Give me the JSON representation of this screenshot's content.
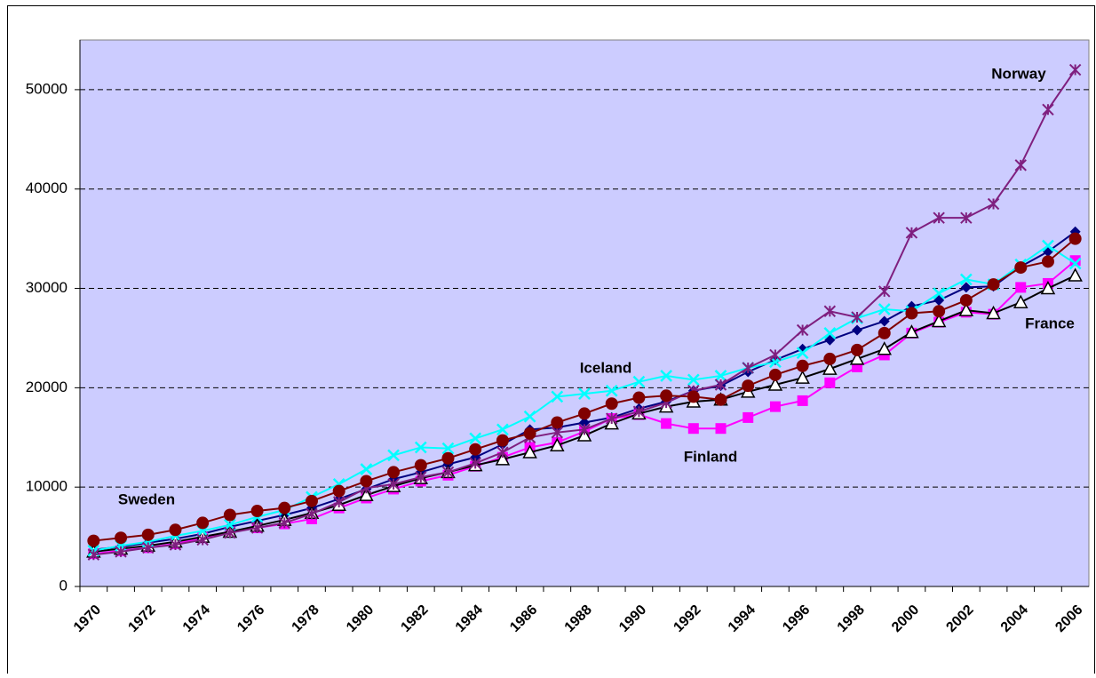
{
  "chart_data": {
    "type": "line",
    "categories": [
      "1970",
      null,
      "1972",
      null,
      "1974",
      null,
      "1976",
      null,
      "1978",
      null,
      "1980",
      null,
      "1982",
      null,
      "1984",
      null,
      "1986",
      null,
      "1988",
      null,
      "1990",
      null,
      "1992",
      null,
      "1994",
      null,
      "1996",
      null,
      "1998",
      null,
      "2000",
      null,
      "2002",
      null,
      "2004",
      null,
      "2006"
    ],
    "ylim": [
      0,
      55000
    ],
    "yticks": [
      0,
      10000,
      20000,
      30000,
      40000,
      50000
    ],
    "grid": true,
    "plot_background": "#ccccff",
    "series": [
      {
        "color": "#000080",
        "marker": "diamond",
        "values": [
          3700,
          4000,
          4400,
          4800,
          5300,
          6000,
          6600,
          7200,
          7900,
          8800,
          9800,
          10800,
          11500,
          12300,
          13000,
          14300,
          15800,
          16000,
          16500,
          17000,
          17900,
          18600,
          19700,
          20200,
          21600,
          22800,
          23900,
          24800,
          25800,
          26700,
          28200,
          28800,
          30100,
          30200,
          32200,
          33700,
          35700
        ]
      },
      {
        "name": "Finland",
        "color": "#ff00ff",
        "marker": "square",
        "values": [
          3300,
          3600,
          3900,
          4300,
          4900,
          5500,
          5900,
          6300,
          6800,
          7900,
          8900,
          9800,
          10600,
          11200,
          12100,
          13000,
          14000,
          14500,
          15600,
          16900,
          17300,
          16400,
          15900,
          15900,
          17000,
          18100,
          18700,
          20500,
          22100,
          23300,
          25500,
          26600,
          27600,
          27400,
          30100,
          30500,
          32800
        ]
      },
      {
        "name": "France",
        "color": "#000000",
        "marker": "triangle",
        "values": [
          3500,
          3800,
          4100,
          4500,
          5000,
          5500,
          6100,
          6700,
          7400,
          8200,
          9200,
          10100,
          10900,
          11500,
          12200,
          12800,
          13500,
          14200,
          15200,
          16400,
          17400,
          18100,
          18600,
          18800,
          19600,
          20300,
          21000,
          21900,
          22900,
          23900,
          25600,
          26700,
          27800,
          27500,
          28600,
          30000,
          31300
        ]
      },
      {
        "name": "Iceland",
        "color": "#00ffff",
        "marker": "x",
        "values": [
          3600,
          4100,
          4500,
          5100,
          5600,
          6200,
          7000,
          7700,
          9000,
          10300,
          11800,
          13200,
          14000,
          13900,
          14900,
          15800,
          17100,
          19100,
          19400,
          19700,
          20600,
          21200,
          20800,
          21200,
          22000,
          22600,
          23500,
          25500,
          27000,
          27900,
          27700,
          29500,
          30900,
          30400,
          32400,
          34300,
          32500
        ]
      },
      {
        "name": "Norway",
        "color": "#7f1f7f",
        "marker": "star",
        "values": [
          3200,
          3500,
          3900,
          4200,
          4700,
          5400,
          5900,
          6400,
          7300,
          8500,
          9900,
          10300,
          11000,
          11500,
          12400,
          13500,
          15000,
          15500,
          15800,
          16900,
          17600,
          18500,
          19700,
          20300,
          22000,
          23300,
          25800,
          27700,
          27100,
          29700,
          35600,
          37100,
          37100,
          38500,
          42400,
          48000,
          52000
        ]
      },
      {
        "name": "Sweden",
        "color": "#800000",
        "marker": "circle",
        "values": [
          4600,
          4900,
          5200,
          5700,
          6400,
          7200,
          7600,
          7900,
          8600,
          9600,
          10600,
          11500,
          12200,
          12900,
          13800,
          14700,
          15400,
          16500,
          17400,
          18400,
          19000,
          19200,
          19100,
          18800,
          20200,
          21300,
          22200,
          22900,
          23800,
          25500,
          27500,
          27700,
          28800,
          30400,
          32100,
          32700,
          35000
        ]
      }
    ]
  }
}
